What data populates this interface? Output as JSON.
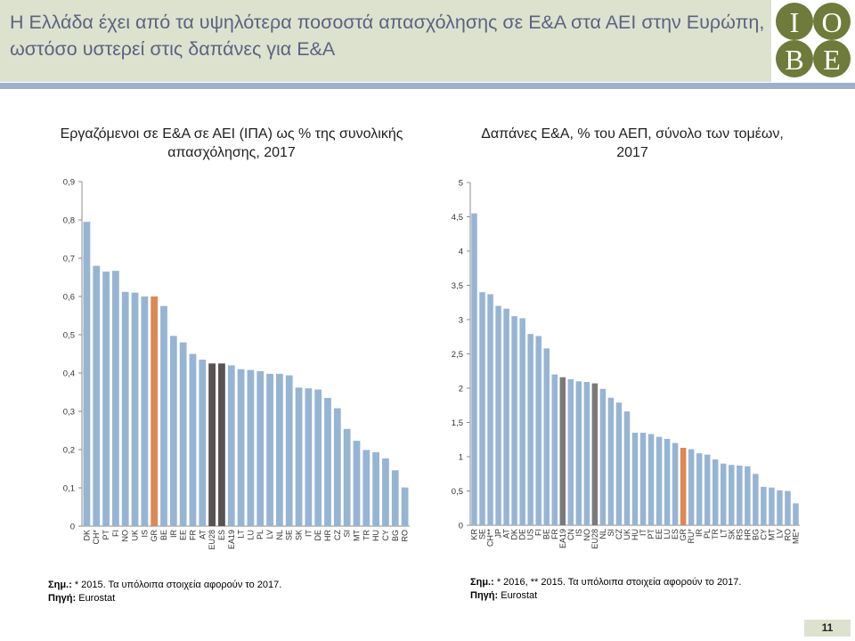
{
  "slide": {
    "title": "Η Ελλάδα έχει από τα υψηλότερα ποσοστά απασχόλησης σε Ε&Α στα ΑΕΙ στην Ευρώπη, ωστόσο υστερεί στις δαπάνες για Ε&Α",
    "logo_letters": [
      "I",
      "O",
      "B",
      "E"
    ],
    "page_number": "11",
    "colors": {
      "header_bg": "#dde2cf",
      "accent_bar": "#9fb1c9",
      "title_text": "#5c6380",
      "logo": "#6e7b3a"
    }
  },
  "notes": {
    "left_note_label": "Σημ.:",
    "left_note_text": " * 2015. Τα υπόλοιπα στοιχεία αφορούν το 2017.",
    "left_source_label": "Πηγή:",
    "left_source_text": " Eurostat",
    "right_note_label": "Σημ.:",
    "right_note_text": " * 2016, ** 2015. Τα υπόλοιπα στοιχεία αφορούν το 2017.",
    "right_source_label": "Πηγή:",
    "right_source_text": " Eurostat"
  },
  "chart_data": [
    {
      "type": "bar",
      "title": "Εργαζόμενοι σε Ε&Α σε ΑΕΙ (ΙΠΑ) ως % της συνολικής απασχόλησης, 2017",
      "xlabel": "",
      "ylabel": "",
      "ylim": [
        0,
        0.9
      ],
      "yticks": [
        "0",
        "0,1",
        "0,2",
        "0,3",
        "0,4",
        "0,5",
        "0,6",
        "0,7",
        "0,8",
        "0,9"
      ],
      "grid": false,
      "categories": [
        "DK",
        "CH*",
        "PT",
        "FI",
        "NO",
        "UK",
        "IS",
        "GR",
        "BE",
        "IR",
        "EE",
        "FR",
        "AT",
        "EU28",
        "ES",
        "EA19",
        "LT",
        "LU",
        "PL",
        "LV",
        "NL",
        "SE",
        "SK",
        "IT",
        "DE",
        "HR",
        "CZ",
        "SI",
        "MT",
        "TR",
        "HU",
        "CY",
        "BG",
        "RO"
      ],
      "values": [
        0.795,
        0.68,
        0.665,
        0.667,
        0.612,
        0.61,
        0.6,
        0.6,
        0.575,
        0.497,
        0.48,
        0.45,
        0.435,
        0.425,
        0.425,
        0.42,
        0.41,
        0.408,
        0.405,
        0.398,
        0.398,
        0.394,
        0.362,
        0.36,
        0.357,
        0.335,
        0.308,
        0.254,
        0.223,
        0.199,
        0.193,
        0.177,
        0.146,
        0.101
      ],
      "colors": {
        "default": "#97b5d3",
        "GR": "#dc8953",
        "EU28": "#595353",
        "ES": "#595353"
      }
    },
    {
      "type": "bar",
      "title": "Δαπάνες Ε&Α, % του ΑΕΠ, σύνολο των τομέων, 2017",
      "xlabel": "",
      "ylabel": "",
      "ylim": [
        0,
        5
      ],
      "yticks": [
        "0",
        "0,5",
        "1",
        "1,5",
        "2",
        "2,5",
        "3",
        "3,5",
        "4",
        "4,5",
        "5"
      ],
      "grid": false,
      "categories": [
        "KR",
        "SE",
        "CH**",
        "JP",
        "AT",
        "DK",
        "DE",
        "US",
        "FI",
        "BE",
        "FR",
        "EA19",
        "CN",
        "IS",
        "NO",
        "EU28",
        "NL",
        "SI",
        "CZ",
        "UK",
        "HU",
        "IT",
        "PT",
        "EE",
        "LU",
        "ES",
        "GR",
        "RU*",
        "IR",
        "PL",
        "TR",
        "LT",
        "SK",
        "RS",
        "HR",
        "BG",
        "CY",
        "MT",
        "LV",
        "RO",
        "ME*"
      ],
      "values": [
        4.55,
        3.4,
        3.37,
        3.2,
        3.16,
        3.05,
        3.02,
        2.79,
        2.76,
        2.58,
        2.2,
        2.16,
        2.13,
        2.1,
        2.09,
        2.07,
        1.99,
        1.86,
        1.79,
        1.66,
        1.35,
        1.35,
        1.33,
        1.29,
        1.26,
        1.2,
        1.13,
        1.11,
        1.05,
        1.03,
        0.96,
        0.9,
        0.88,
        0.87,
        0.86,
        0.75,
        0.56,
        0.55,
        0.51,
        0.5,
        0.32
      ],
      "colors": {
        "default": "#97b5d3",
        "GR": "#dc8953",
        "EA19": "#7a7a7a",
        "EU28": "#7a7a7a"
      }
    }
  ]
}
